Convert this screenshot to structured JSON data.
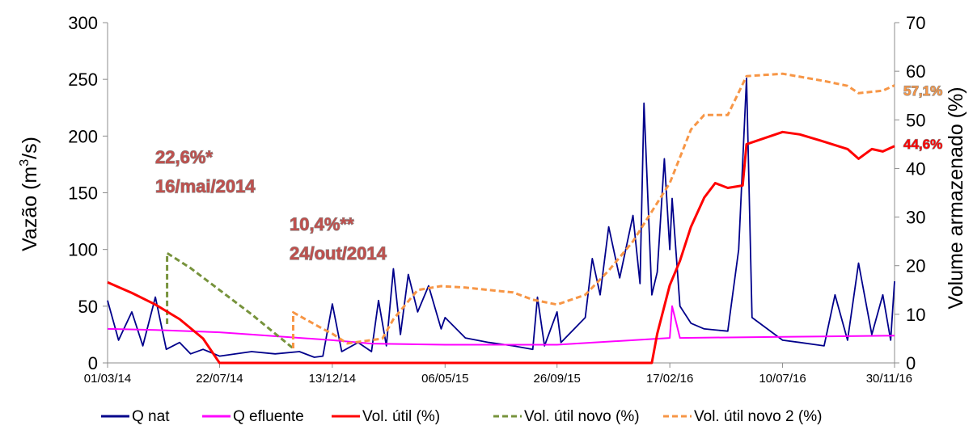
{
  "chart_data": {
    "type": "line",
    "title": "",
    "x_ticks": [
      "01/03/14",
      "22/07/14",
      "13/12/14",
      "06/05/15",
      "26/09/15",
      "17/02/16",
      "10/07/16",
      "30/11/16"
    ],
    "x_range": [
      "01/03/14",
      "30/11/16"
    ],
    "ylabel_left": "Vazão (m³/s)",
    "ylabel_left_parts": {
      "pre": "Vazão (m",
      "sup": "3",
      "post": "/s)"
    },
    "ylim_left": [
      0,
      300
    ],
    "yticks_left": [
      0,
      50,
      100,
      150,
      200,
      250,
      300
    ],
    "ylabel_right": "Volume armazenado (%)",
    "ylim_right": [
      0,
      70
    ],
    "yticks_right": [
      0,
      10,
      20,
      30,
      40,
      50,
      60,
      70
    ],
    "grid": false,
    "legend_position": "bottom",
    "series": [
      {
        "name": "Q nat",
        "axis": "left",
        "color": "#00008b",
        "dash": "solid",
        "points": [
          [
            "01/03/14",
            55
          ],
          [
            "15/03/14",
            20
          ],
          [
            "01/04/14",
            45
          ],
          [
            "15/04/14",
            15
          ],
          [
            "01/05/14",
            58
          ],
          [
            "15/05/14",
            12
          ],
          [
            "01/06/14",
            18
          ],
          [
            "15/06/14",
            8
          ],
          [
            "01/07/14",
            12
          ],
          [
            "22/07/14",
            6
          ],
          [
            "01/09/14",
            10
          ],
          [
            "01/10/14",
            8
          ],
          [
            "01/11/14",
            10
          ],
          [
            "20/11/14",
            5
          ],
          [
            "01/12/14",
            6
          ],
          [
            "13/12/14",
            52
          ],
          [
            "25/12/14",
            10
          ],
          [
            "15/01/15",
            18
          ],
          [
            "01/02/15",
            10
          ],
          [
            "10/02/15",
            55
          ],
          [
            "20/02/15",
            15
          ],
          [
            "01/03/15",
            83
          ],
          [
            "10/03/15",
            25
          ],
          [
            "20/03/15",
            78
          ],
          [
            "01/04/15",
            45
          ],
          [
            "15/04/15",
            68
          ],
          [
            "01/05/15",
            30
          ],
          [
            "06/05/15",
            40
          ],
          [
            "01/06/15",
            22
          ],
          [
            "01/07/15",
            18
          ],
          [
            "01/08/15",
            15
          ],
          [
            "26/08/15",
            12
          ],
          [
            "01/09/15",
            58
          ],
          [
            "10/09/15",
            15
          ],
          [
            "26/09/15",
            45
          ],
          [
            "01/10/15",
            18
          ],
          [
            "01/11/15",
            40
          ],
          [
            "10/11/15",
            92
          ],
          [
            "20/11/15",
            60
          ],
          [
            "01/12/15",
            120
          ],
          [
            "15/12/15",
            75
          ],
          [
            "01/01/16",
            130
          ],
          [
            "10/01/16",
            70
          ],
          [
            "15/01/16",
            229
          ],
          [
            "25/01/16",
            60
          ],
          [
            "01/02/16",
            80
          ],
          [
            "10/02/16",
            180
          ],
          [
            "17/02/16",
            100
          ],
          [
            "20/02/16",
            145
          ],
          [
            "01/03/16",
            50
          ],
          [
            "15/03/16",
            35
          ],
          [
            "01/04/16",
            30
          ],
          [
            "01/05/16",
            28
          ],
          [
            "15/05/16",
            100
          ],
          [
            "25/05/16",
            251
          ],
          [
            "01/06/16",
            40
          ],
          [
            "10/07/16",
            20
          ],
          [
            "01/08/16",
            18
          ],
          [
            "01/09/16",
            15
          ],
          [
            "15/09/16",
            60
          ],
          [
            "01/10/16",
            20
          ],
          [
            "15/10/16",
            88
          ],
          [
            "01/11/16",
            25
          ],
          [
            "15/11/16",
            60
          ],
          [
            "25/11/16",
            20
          ],
          [
            "30/11/16",
            72
          ]
        ]
      },
      {
        "name": "Q efluente",
        "axis": "left",
        "color": "#ff00ff",
        "dash": "solid",
        "points": [
          [
            "01/03/14",
            30
          ],
          [
            "01/05/14",
            29
          ],
          [
            "22/07/14",
            27
          ],
          [
            "01/09/14",
            25
          ],
          [
            "13/12/14",
            20
          ],
          [
            "01/02/15",
            17
          ],
          [
            "06/05/15",
            16
          ],
          [
            "26/09/15",
            16
          ],
          [
            "17/02/16",
            22
          ],
          [
            "20/02/16",
            50
          ],
          [
            "01/03/16",
            22
          ],
          [
            "10/07/16",
            23
          ],
          [
            "30/11/16",
            24
          ]
        ]
      },
      {
        "name": "Vol. útil (%)",
        "axis": "right",
        "color": "#ff0000",
        "dash": "solid",
        "points": [
          [
            "01/03/14",
            16.6
          ],
          [
            "15/03/14",
            15.6
          ],
          [
            "01/04/14",
            14.4
          ],
          [
            "01/05/14",
            12
          ],
          [
            "01/06/14",
            9
          ],
          [
            "01/07/14",
            5
          ],
          [
            "22/07/14",
            0
          ],
          [
            "25/01/16",
            0
          ],
          [
            "01/02/16",
            6
          ],
          [
            "17/02/16",
            16
          ],
          [
            "01/03/16",
            21
          ],
          [
            "15/03/16",
            28
          ],
          [
            "01/04/16",
            34
          ],
          [
            "15/04/16",
            37
          ],
          [
            "01/05/16",
            36
          ],
          [
            "20/05/16",
            36.5
          ],
          [
            "25/05/16",
            45
          ],
          [
            "10/07/16",
            47.5
          ],
          [
            "01/08/16",
            47
          ],
          [
            "01/09/16",
            45.5
          ],
          [
            "01/10/16",
            44
          ],
          [
            "15/10/16",
            42
          ],
          [
            "01/11/16",
            44
          ],
          [
            "15/11/16",
            43.5
          ],
          [
            "30/11/16",
            44.6
          ]
        ]
      },
      {
        "name": "Vol. útil novo (%)",
        "axis": "right",
        "color": "#77933c",
        "dash": "dashed",
        "points": [
          [
            "16/05/14",
            8
          ],
          [
            "16/05/14",
            22.6
          ],
          [
            "15/06/14",
            19.5
          ],
          [
            "22/07/14",
            15
          ],
          [
            "01/09/14",
            10
          ],
          [
            "24/10/14",
            3
          ]
        ]
      },
      {
        "name": "Vol. útil novo 2 (%)",
        "axis": "right",
        "color": "#f79646",
        "dash": "dashed",
        "points": [
          [
            "24/10/14",
            3
          ],
          [
            "24/10/14",
            10.4
          ],
          [
            "01/12/14",
            7
          ],
          [
            "13/12/14",
            6
          ],
          [
            "01/01/15",
            4
          ],
          [
            "15/02/15",
            5
          ],
          [
            "01/03/15",
            9
          ],
          [
            "01/04/15",
            15
          ],
          [
            "01/05/15",
            15.8
          ],
          [
            "01/06/15",
            15.5
          ],
          [
            "01/08/15",
            14.5
          ],
          [
            "26/08/15",
            13
          ],
          [
            "26/09/15",
            12
          ],
          [
            "01/11/15",
            14
          ],
          [
            "01/12/15",
            19
          ],
          [
            "01/01/16",
            25
          ],
          [
            "17/02/16",
            37
          ],
          [
            "15/03/16",
            48
          ],
          [
            "01/04/16",
            51
          ],
          [
            "01/05/16",
            51
          ],
          [
            "25/05/16",
            59
          ],
          [
            "10/07/16",
            59.5
          ],
          [
            "01/09/16",
            58
          ],
          [
            "01/10/16",
            57
          ],
          [
            "15/10/16",
            55.5
          ],
          [
            "15/11/16",
            56
          ],
          [
            "30/11/16",
            57.1
          ]
        ]
      }
    ],
    "annotations": [
      {
        "text": "22,6%*",
        "color": "#c0504d"
      },
      {
        "text": "16/mai/2014",
        "color": "#c0504d"
      },
      {
        "text": "10,4%**",
        "color": "#c0504d"
      },
      {
        "text": "24/out/2014",
        "color": "#c0504d"
      },
      {
        "text": "57,1%",
        "color": "#f79646"
      },
      {
        "text": "44,6%",
        "color": "#ff0000"
      }
    ]
  }
}
